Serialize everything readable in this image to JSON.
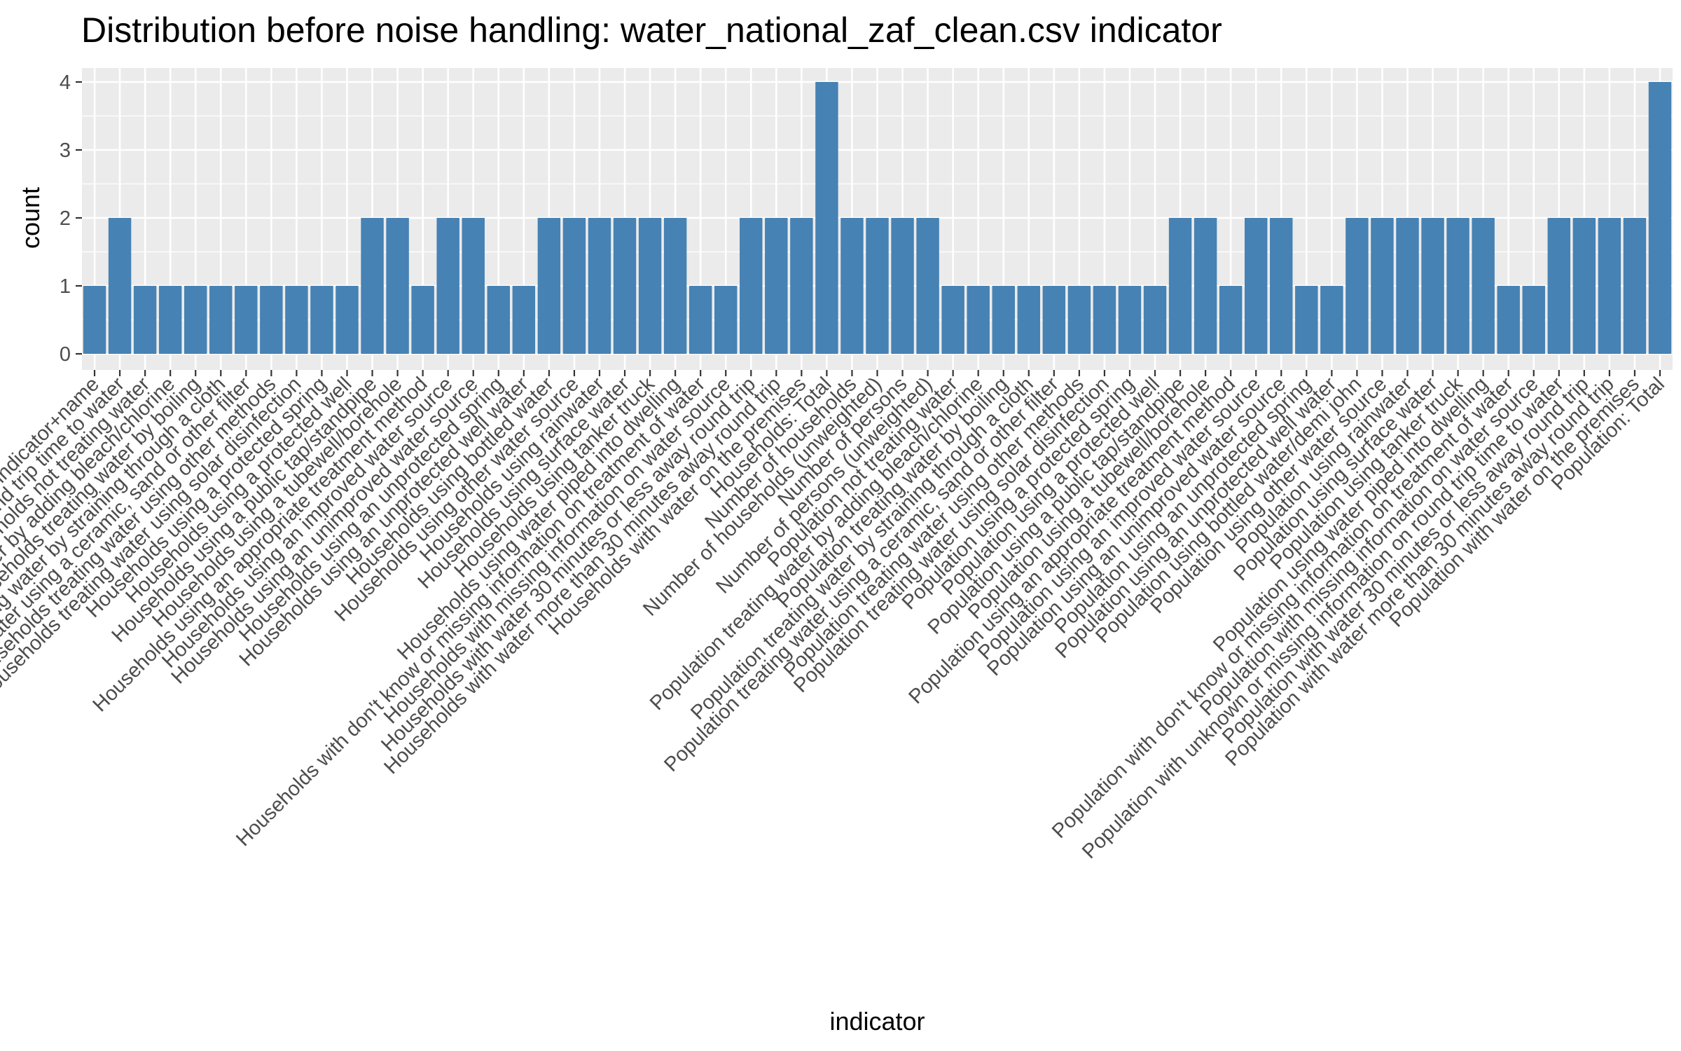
{
  "chart_data": {
    "type": "bar",
    "title": "Distribution before noise handling: water_national_zaf_clean.csv indicator",
    "xlabel": "indicator",
    "ylabel": "count",
    "ylim": [
      0,
      4
    ],
    "yticks": [
      0,
      1,
      2,
      3,
      4
    ],
    "grid": true,
    "bar_color": "#4682B4",
    "panel_color": "#EBEBEB",
    "categories": [
      "#indicator+name",
      "Average round trip time to water",
      "Households not treating water",
      "Households treating water by adding bleach/chlorine",
      "Households treating water by boiling",
      "Households treating water by straining through a cloth",
      "Households treating water using a ceramic, sand or other filter",
      "Households treating water using other methods",
      "Households treating water using solar disinfection",
      "Households using a protected spring",
      "Households using a protected well",
      "Households using a public tap/standpipe",
      "Households using a tubewell/borehole",
      "Households using an appropriate treatment method",
      "Households using an improved water source",
      "Households using an unimproved water source",
      "Households using an unprotected spring",
      "Households using an unprotected well water",
      "Households using bottled water",
      "Households using other water source",
      "Households using rainwater",
      "Households using surface water",
      "Households using tanker truck",
      "Households using water piped into dwelling",
      "Households with don't know or missing information on treatment of water",
      "Households with missing information on water source",
      "Households with water 30 minutes or less away round trip",
      "Households with water more than 30 minutes away round trip",
      "Households with water on the premises",
      "Households: Total",
      "Number of households",
      "Number of households (unweighted)",
      "Number of persons",
      "Number of persons (unweighted)",
      "Population not treating water",
      "Population treating water by adding bleach/chlorine",
      "Population treating water by boiling",
      "Population treating water by straining through a cloth",
      "Population treating water using a ceramic, sand or other filter",
      "Population treating water using other methods",
      "Population treating water using solar disinfection",
      "Population using a protected spring",
      "Population using a protected well",
      "Population using a public tap/standpipe",
      "Population using a tubewell/borehole",
      "Population using an appropriate treatment method",
      "Population using an improved water source",
      "Population using an unimproved water source",
      "Population using an unprotected spring",
      "Population using an unprotected well water",
      "Population using bottled water/demi john",
      "Population using other water source",
      "Population using rainwater",
      "Population using surface water",
      "Population using tanker truck",
      "Population using water piped into dwelling",
      "Population with don't know or missing information on treatment of water",
      "Population with missing information on water source",
      "Population with unknown or missing information on round trip time to water",
      "Population with water 30 minutes or less away round trip",
      "Population with water more than 30 minutes away round trip",
      "Population with water on the premises",
      "Population: Total"
    ],
    "values": [
      1,
      2,
      1,
      1,
      1,
      1,
      1,
      1,
      1,
      1,
      1,
      2,
      2,
      1,
      2,
      2,
      1,
      1,
      2,
      2,
      2,
      2,
      2,
      2,
      1,
      1,
      2,
      2,
      2,
      4,
      2,
      2,
      2,
      2,
      1,
      1,
      1,
      1,
      1,
      1,
      1,
      1,
      1,
      2,
      2,
      1,
      2,
      2,
      1,
      1,
      2,
      2,
      2,
      2,
      2,
      2,
      1,
      1,
      2,
      2,
      2,
      2,
      4
    ]
  }
}
